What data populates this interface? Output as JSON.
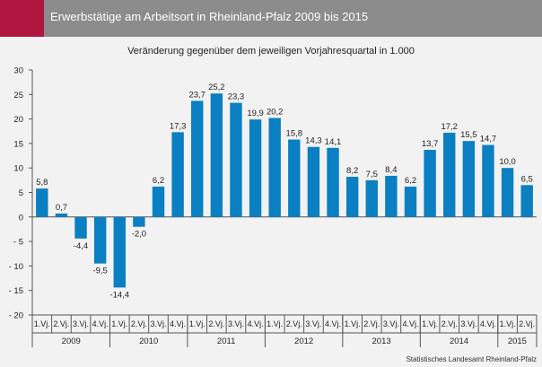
{
  "header": {
    "title": "Erwerbstätige am Arbeitsort in Rheinland-Pfalz 2009 bis 2015",
    "accent_color": "#b0163f",
    "bar_color": "#8c8c8c"
  },
  "footer": {
    "source": "Statistisches Landesamt Rheinland-Pfalz"
  },
  "chart_data": {
    "type": "bar",
    "title": "Veränderung gegenüber dem jeweiligen Vorjahresquartal in 1.000",
    "categories": [
      "1.Vj.",
      "2.Vj.",
      "3.Vj.",
      "4.Vj.",
      "1.Vj.",
      "2.Vj.",
      "3.Vj.",
      "4.Vj.",
      "1.Vj.",
      "2.Vj.",
      "3.Vj.",
      "4.Vj.",
      "1.Vj.",
      "2.Vj.",
      "3.Vj.",
      "4.Vj.",
      "1.Vj.",
      "2.Vj.",
      "3.Vj.",
      "4.Vj.",
      "1.Vj.",
      "2.Vj.",
      "3.Vj.",
      "4.Vj.",
      "1.Vj.",
      "2.Vj."
    ],
    "values": [
      5.8,
      0.7,
      -4.4,
      -9.5,
      -14.4,
      -2.0,
      6.2,
      17.3,
      23.7,
      25.2,
      23.3,
      19.9,
      20.2,
      15.8,
      14.3,
      14.1,
      8.2,
      7.5,
      8.4,
      6.2,
      13.7,
      17.2,
      15.5,
      14.7,
      10.0,
      6.5
    ],
    "value_labels": [
      "5,8",
      "0,7",
      "-4,4",
      "-9,5",
      "-14,4",
      "-2,0",
      "6,2",
      "17,3",
      "23,7",
      "25,2",
      "23,3",
      "19,9",
      "20,2",
      "15,8",
      "14,3",
      "14,1",
      "8,2",
      "7,5",
      "8,4",
      "6,2",
      "13,7",
      "17,2",
      "15,5",
      "14,7",
      "10,0",
      "6,5"
    ],
    "years": [
      {
        "label": "2009",
        "quarters": 4
      },
      {
        "label": "2010",
        "quarters": 4
      },
      {
        "label": "2011",
        "quarters": 4
      },
      {
        "label": "2012",
        "quarters": 4
      },
      {
        "label": "2013",
        "quarters": 4
      },
      {
        "label": "2014",
        "quarters": 4
      },
      {
        "label": "2015",
        "quarters": 2
      }
    ],
    "ylim": [
      -20,
      30
    ],
    "yticks": [
      30,
      25,
      20,
      15,
      10,
      5,
      0,
      -5,
      -10,
      -15,
      -20
    ],
    "ytick_labels": [
      "30",
      "25",
      "20",
      "15",
      "10",
      "5",
      "0",
      "- 5",
      "- 10",
      "- 15",
      "- 20"
    ],
    "color": "#0a7fc1",
    "grid": false
  }
}
